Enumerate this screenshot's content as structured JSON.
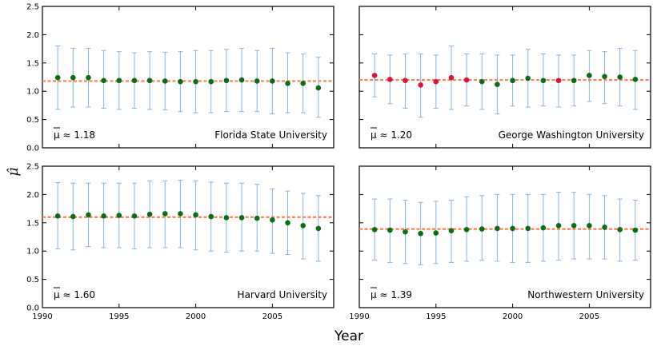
{
  "figure": {
    "xlabel": "Year",
    "ylabel": "μ̂",
    "colors": {
      "errorbar": "#8ab4dd",
      "marker_green": "#0a6e12",
      "marker_red": "#dc143c",
      "mean_line": "#ff7f50"
    }
  },
  "chart_data": [
    {
      "type": "scatter",
      "title": "Florida State University",
      "mean_label": "μ ≈ 1.18",
      "mean": 1.18,
      "xlim": [
        1990,
        2009
      ],
      "ylim": [
        0.0,
        2.5
      ],
      "xticks": [
        "1990",
        "1995",
        "2000",
        "2005"
      ],
      "yticks": [
        "0.0",
        "0.5",
        "1.0",
        "1.5",
        "2.0",
        "2.5"
      ],
      "x": [
        1991,
        1992,
        1993,
        1994,
        1995,
        1996,
        1997,
        1998,
        1999,
        2000,
        2001,
        2002,
        2003,
        2004,
        2005,
        2006,
        2007,
        2008
      ],
      "y": [
        1.24,
        1.24,
        1.24,
        1.19,
        1.19,
        1.19,
        1.19,
        1.18,
        1.17,
        1.17,
        1.17,
        1.19,
        1.2,
        1.18,
        1.18,
        1.14,
        1.14,
        1.06
      ],
      "yerr_low": [
        0.68,
        0.72,
        0.72,
        0.7,
        0.68,
        0.7,
        0.68,
        0.67,
        0.64,
        0.62,
        0.62,
        0.64,
        0.64,
        0.64,
        0.6,
        0.62,
        0.62,
        0.54
      ],
      "yerr_high": [
        1.8,
        1.76,
        1.76,
        1.72,
        1.7,
        1.68,
        1.7,
        1.69,
        1.7,
        1.72,
        1.72,
        1.74,
        1.76,
        1.72,
        1.76,
        1.68,
        1.66,
        1.6
      ],
      "highlight": [
        false,
        false,
        false,
        false,
        false,
        false,
        false,
        false,
        false,
        false,
        false,
        false,
        false,
        false,
        false,
        false,
        false,
        false
      ]
    },
    {
      "type": "scatter",
      "title": "George Washington University",
      "mean_label": "μ ≈ 1.20",
      "mean": 1.2,
      "xlim": [
        1990,
        2009
      ],
      "ylim": [
        0.0,
        2.5
      ],
      "xticks": [
        "1990",
        "1995",
        "2000",
        "2005"
      ],
      "yticks": [
        "0.0",
        "0.5",
        "1.0",
        "1.5",
        "2.0",
        "2.5"
      ],
      "x": [
        1991,
        1992,
        1993,
        1994,
        1995,
        1996,
        1997,
        1998,
        1999,
        2000,
        2001,
        2002,
        2003,
        2004,
        2005,
        2006,
        2007,
        2008
      ],
      "y": [
        1.28,
        1.21,
        1.19,
        1.11,
        1.17,
        1.24,
        1.2,
        1.17,
        1.12,
        1.19,
        1.23,
        1.19,
        1.19,
        1.19,
        1.28,
        1.26,
        1.25,
        1.21
      ],
      "yerr_low": [
        0.9,
        0.78,
        0.7,
        0.54,
        0.7,
        0.68,
        0.74,
        0.68,
        0.6,
        0.74,
        0.72,
        0.74,
        0.72,
        0.74,
        0.82,
        0.78,
        0.74,
        0.68
      ],
      "yerr_high": [
        1.66,
        1.64,
        1.66,
        1.66,
        1.64,
        1.8,
        1.66,
        1.66,
        1.64,
        1.64,
        1.74,
        1.66,
        1.64,
        1.64,
        1.72,
        1.7,
        1.76,
        1.72
      ],
      "highlight": [
        true,
        true,
        true,
        true,
        true,
        true,
        true,
        false,
        false,
        false,
        false,
        false,
        true,
        false,
        false,
        false,
        false,
        false
      ]
    },
    {
      "type": "scatter",
      "title": "Harvard University",
      "mean_label": "μ ≈ 1.60",
      "mean": 1.6,
      "xlim": [
        1990,
        2009
      ],
      "ylim": [
        0.0,
        2.5
      ],
      "xticks": [
        "1990",
        "1995",
        "2000",
        "2005"
      ],
      "yticks": [
        "0.0",
        "0.5",
        "1.0",
        "1.5",
        "2.0",
        "2.5"
      ],
      "x": [
        1991,
        1992,
        1993,
        1994,
        1995,
        1996,
        1997,
        1998,
        1999,
        2000,
        2001,
        2002,
        2003,
        2004,
        2005,
        2006,
        2007,
        2008
      ],
      "y": [
        1.62,
        1.61,
        1.64,
        1.62,
        1.63,
        1.62,
        1.65,
        1.66,
        1.66,
        1.64,
        1.61,
        1.59,
        1.59,
        1.58,
        1.55,
        1.5,
        1.45,
        1.4
      ],
      "yerr_low": [
        1.04,
        1.02,
        1.08,
        1.06,
        1.06,
        1.04,
        1.06,
        1.06,
        1.06,
        1.02,
        1.0,
        0.98,
        1.0,
        1.0,
        0.96,
        0.94,
        0.86,
        0.82
      ],
      "yerr_high": [
        2.21,
        2.2,
        2.2,
        2.2,
        2.2,
        2.2,
        2.24,
        2.24,
        2.25,
        2.24,
        2.22,
        2.2,
        2.2,
        2.18,
        2.1,
        2.06,
        2.02,
        1.98
      ],
      "highlight": [
        false,
        false,
        false,
        false,
        false,
        false,
        false,
        false,
        false,
        false,
        false,
        false,
        false,
        false,
        false,
        false,
        false,
        false
      ]
    },
    {
      "type": "scatter",
      "title": "Northwestern University",
      "mean_label": "μ ≈ 1.39",
      "mean": 1.39,
      "xlim": [
        1990,
        2009
      ],
      "ylim": [
        0.0,
        2.5
      ],
      "xticks": [
        "1990",
        "1995",
        "2000",
        "2005"
      ],
      "yticks": [
        "0.0",
        "0.5",
        "1.0",
        "1.5",
        "2.0",
        "2.5"
      ],
      "x": [
        1991,
        1992,
        1993,
        1994,
        1995,
        1996,
        1997,
        1998,
        1999,
        2000,
        2001,
        2002,
        2003,
        2004,
        2005,
        2006,
        2007,
        2008
      ],
      "y": [
        1.38,
        1.37,
        1.34,
        1.31,
        1.32,
        1.36,
        1.38,
        1.39,
        1.4,
        1.4,
        1.4,
        1.41,
        1.45,
        1.45,
        1.45,
        1.42,
        1.38,
        1.37
      ],
      "yerr_low": [
        0.84,
        0.8,
        0.78,
        0.76,
        0.78,
        0.8,
        0.82,
        0.84,
        0.82,
        0.8,
        0.8,
        0.82,
        0.84,
        0.86,
        0.86,
        0.86,
        0.82,
        0.84
      ],
      "yerr_high": [
        1.92,
        1.92,
        1.9,
        1.86,
        1.88,
        1.9,
        1.96,
        1.98,
        2.0,
        2.0,
        2.0,
        2.0,
        2.04,
        2.04,
        2.0,
        1.98,
        1.92,
        1.9
      ],
      "highlight": [
        false,
        false,
        false,
        false,
        false,
        false,
        false,
        false,
        false,
        false,
        false,
        false,
        false,
        false,
        false,
        false,
        false,
        false
      ]
    }
  ]
}
